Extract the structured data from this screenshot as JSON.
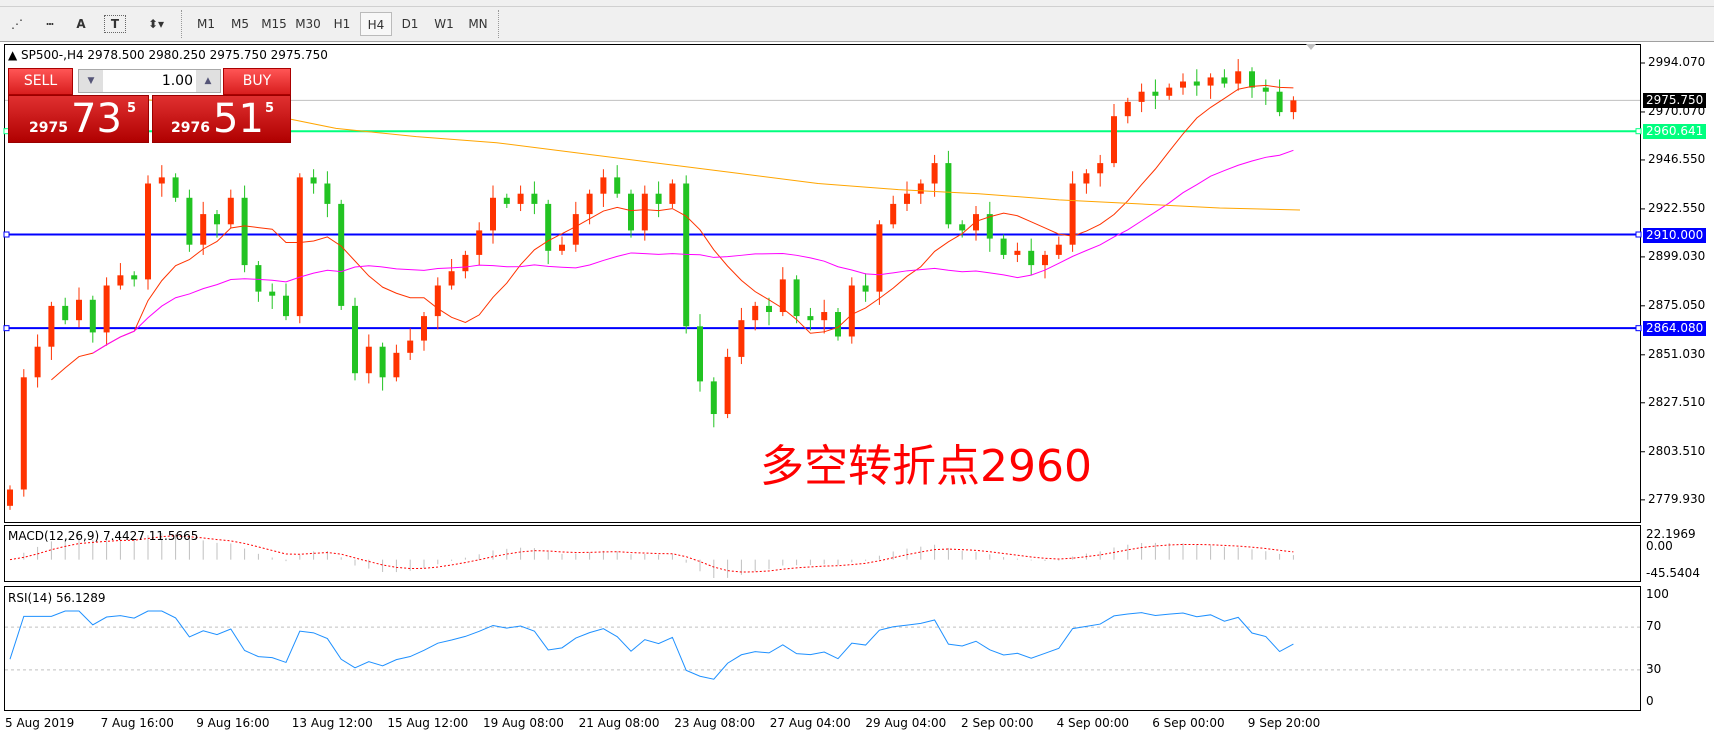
{
  "toolbar": {
    "tools": [
      {
        "icon": "fibonacci-expansion-icon"
      },
      {
        "icon": "fibonacci-fan-icon"
      },
      {
        "icon": "text-icon",
        "label": "A"
      },
      {
        "icon": "text-label-icon",
        "label": "T"
      },
      {
        "icon": "arrows-dropdown-icon",
        "label": "▾"
      }
    ],
    "timeframes": [
      "M1",
      "M5",
      "M15",
      "M30",
      "H1",
      "H4",
      "D1",
      "W1",
      "MN"
    ],
    "active_timeframe": "H4"
  },
  "chart": {
    "header": "SP500-,H4  2978.500 2980.250 2975.750 2975.750",
    "symbol": "SP500-",
    "timeframe": "H4",
    "trade": {
      "sell_label": "SELL",
      "buy_label": "BUY",
      "volume": "1.00",
      "sell_big": "2975",
      "sell_main": "73",
      "sell_sup": "5",
      "buy_big": "2976",
      "buy_main": "51",
      "buy_sup": "5"
    },
    "annotation": "多空转折点2960",
    "price_ticks": [
      "2994.070",
      "2970.070",
      "2946.550",
      "2922.550",
      "2899.030",
      "2875.050",
      "2851.030",
      "2827.510",
      "2803.510",
      "2779.930"
    ],
    "lines": [
      {
        "price": 2975.75,
        "label": "2975.750",
        "color": "#c0c0c0",
        "label_bg": "#000000"
      },
      {
        "price": 2960.641,
        "label": "2960.641",
        "color": "#00ff7f",
        "label_bg": "#00ff7f"
      },
      {
        "price": 2910.0,
        "label": "2910.000",
        "color": "#0000ff",
        "label_bg": "#0000ff"
      },
      {
        "price": 2864.08,
        "label": "2864.080",
        "color": "#0000ff",
        "label_bg": "#0000ff"
      }
    ],
    "colors": {
      "up": "#ff3300",
      "down": "#22c322",
      "ma_fast": "#ff3300",
      "ma_mid": "#ff00ff",
      "ma_slow": "#ffa500",
      "rsi": "#1e90ff",
      "macd_hist": "#c0c0c0",
      "macd_signal": "#ff0000"
    },
    "time_labels": [
      "5 Aug 2019",
      "7 Aug 16:00",
      "9 Aug 16:00",
      "13 Aug 12:00",
      "15 Aug 12:00",
      "19 Aug 08:00",
      "21 Aug 08:00",
      "23 Aug 08:00",
      "27 Aug 04:00",
      "29 Aug 04:00",
      "2 Sep 00:00",
      "4 Sep 00:00",
      "6 Sep 00:00",
      "9 Sep 20:00"
    ]
  },
  "macd": {
    "label": "MACD(12,26,9) 7.4427 11.5665",
    "ticks": [
      "22.1969",
      "0.00",
      "-45.5404"
    ],
    "max": 22.1969,
    "min": -45.5404
  },
  "rsi": {
    "label": "RSI(14) 56.1289",
    "ticks": [
      "100",
      "70",
      "30",
      "0"
    ],
    "levels": [
      70,
      30
    ]
  },
  "chart_data": {
    "type": "candlestick",
    "ylim": [
      2779.93,
      2994.07
    ],
    "closes": [
      2785,
      2840,
      2855,
      2875,
      2868,
      2878,
      2862,
      2885,
      2890,
      2888,
      2935,
      2938,
      2928,
      2905,
      2920,
      2915,
      2928,
      2895,
      2882,
      2880,
      2870,
      2938,
      2935,
      2925,
      2875,
      2842,
      2855,
      2840,
      2852,
      2858,
      2870,
      2885,
      2892,
      2900,
      2912,
      2928,
      2925,
      2930,
      2925,
      2902,
      2905,
      2920,
      2930,
      2938,
      2930,
      2912,
      2930,
      2925,
      2935,
      2865,
      2838,
      2822,
      2850,
      2868,
      2875,
      2872,
      2888,
      2870,
      2868,
      2872,
      2860,
      2885,
      2882,
      2915,
      2925,
      2930,
      2935,
      2945,
      2915,
      2912,
      2920,
      2908,
      2900,
      2902,
      2895,
      2900,
      2905,
      2935,
      2940,
      2945,
      2968,
      2975,
      2980,
      2978,
      2982,
      2985,
      2983,
      2987,
      2984,
      2990,
      2982,
      2980,
      2970,
      2975.75
    ],
    "slow_ma": [
      2978,
      2975,
      2970,
      2962,
      2958,
      2955,
      2950,
      2945,
      2940,
      2935,
      2932,
      2930,
      2927,
      2925,
      2923,
      2922
    ]
  }
}
